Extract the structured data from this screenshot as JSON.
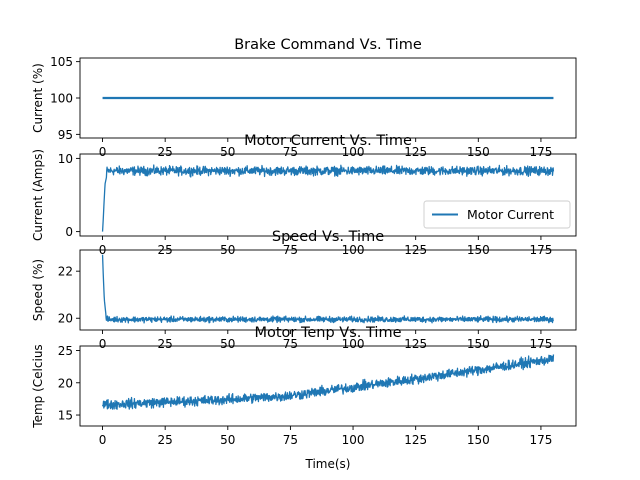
{
  "colors": {
    "line": "#1f77b4",
    "axes": "#000000",
    "background": "#ffffff"
  },
  "chart_data": [
    {
      "type": "line",
      "title": "Brake Command Vs. Time",
      "xlabel": "",
      "ylabel": "Current (%)",
      "xlim": [
        -9,
        189
      ],
      "ylim": [
        94.5,
        105.5
      ],
      "xticks": [
        0,
        25,
        50,
        75,
        100,
        125,
        150,
        175
      ],
      "xticklabels": [
        "0",
        "25",
        "50",
        "75",
        "100",
        "125",
        "150",
        "175"
      ],
      "yticks": [
        95,
        100,
        105
      ],
      "yticklabels": [
        "95",
        "100",
        "105"
      ],
      "legend": null,
      "series": [
        {
          "name": "Brake Command",
          "signal": {
            "t_start": 0,
            "t_end": 180,
            "base": 100,
            "noise": 0
          }
        }
      ]
    },
    {
      "type": "line",
      "title": "Motor Current Vs. Time",
      "xlabel": "",
      "ylabel": "Current (Amps)",
      "xlim": [
        -9,
        189
      ],
      "ylim": [
        -0.6,
        10.6
      ],
      "xticks": [
        0,
        25,
        50,
        75,
        100,
        125,
        150,
        175
      ],
      "xticklabels": [
        "0",
        "25",
        "50",
        "75",
        "100",
        "125",
        "150",
        "175"
      ],
      "yticks": [
        0,
        10
      ],
      "yticklabels": [
        "0",
        "10"
      ],
      "legend": {
        "position": "lower-right",
        "entries": [
          "Motor Current"
        ]
      },
      "series": [
        {
          "name": "Motor Current",
          "signal": {
            "t_start": 0,
            "t_end": 180,
            "startup": [
              [
                0,
                0
              ],
              [
                0.3,
                1.8
              ],
              [
                0.6,
                4.0
              ],
              [
                1.0,
                6.5
              ],
              [
                1.6,
                7.5
              ]
            ],
            "base": 8.3,
            "noise": 1.1
          }
        }
      ]
    },
    {
      "type": "line",
      "title": "Speed Vs. Time",
      "xlabel": "",
      "ylabel": "Speed (%)",
      "xlim": [
        -9,
        189
      ],
      "ylim": [
        19.5,
        22.9
      ],
      "xticks": [
        0,
        25,
        50,
        75,
        100,
        125,
        150,
        175
      ],
      "xticklabels": [
        "0",
        "25",
        "50",
        "75",
        "100",
        "125",
        "150",
        "175"
      ],
      "yticks": [
        20,
        22
      ],
      "yticklabels": [
        "20",
        "22"
      ],
      "legend": null,
      "series": [
        {
          "name": "Speed",
          "signal": {
            "t_start": 0,
            "t_end": 180,
            "startup": [
              [
                0,
                22.7
              ],
              [
                0.3,
                21.8
              ],
              [
                0.7,
                20.8
              ],
              [
                1.3,
                20.2
              ]
            ],
            "base": 19.95,
            "noise": 0.22
          }
        }
      ]
    },
    {
      "type": "line",
      "title": "Motor Tenp Vs. Time",
      "xlabel": "Time(s)",
      "ylabel": "Temp (Celcius",
      "xlim": [
        -9,
        189
      ],
      "ylim": [
        13.3,
        25.7
      ],
      "xticks": [
        0,
        25,
        50,
        75,
        100,
        125,
        150,
        175
      ],
      "xticklabels": [
        "0",
        "25",
        "50",
        "75",
        "100",
        "125",
        "150",
        "175"
      ],
      "yticks": [
        15,
        20,
        25
      ],
      "yticklabels": [
        "15",
        "20",
        "25"
      ],
      "legend": null,
      "series": [
        {
          "name": "Motor Temp",
          "signal": {
            "t_start": 0,
            "t_end": 180,
            "trend": [
              [
                0,
                16.6
              ],
              [
                25,
                17.0
              ],
              [
                50,
                17.4
              ],
              [
                75,
                18.0
              ],
              [
                100,
                19.3
              ],
              [
                125,
                20.6
              ],
              [
                150,
                22.0
              ],
              [
                180,
                23.7
              ]
            ],
            "noise": 1.4
          }
        }
      ]
    }
  ]
}
